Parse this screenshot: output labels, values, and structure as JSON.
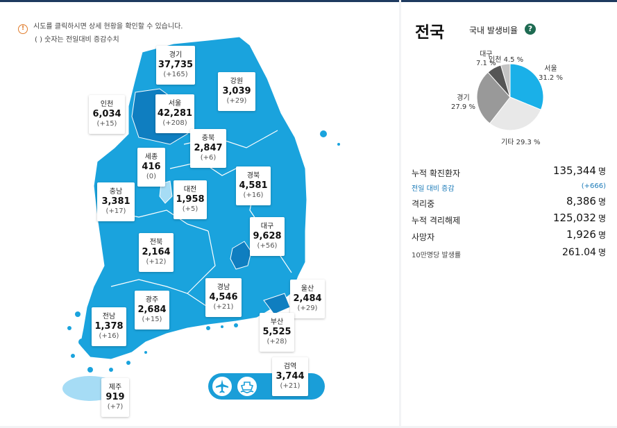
{
  "notice": {
    "line1": "시도를 클릭하시면 상세 현황을 확인할 수 있습니다.",
    "line2": "( ) 숫자는 전일대비 증감수치"
  },
  "regions": [
    {
      "name": "경기",
      "count": "37,735",
      "delta": "(+165)"
    },
    {
      "name": "강원",
      "count": "3,039",
      "delta": "(+29)"
    },
    {
      "name": "인천",
      "count": "6,034",
      "delta": "(+15)"
    },
    {
      "name": "서울",
      "count": "42,281",
      "delta": "(+208)"
    },
    {
      "name": "충북",
      "count": "2,847",
      "delta": "(+6)"
    },
    {
      "name": "세종",
      "count": "416",
      "delta": "(0)"
    },
    {
      "name": "경북",
      "count": "4,581",
      "delta": "(+16)"
    },
    {
      "name": "대전",
      "count": "1,958",
      "delta": "(+5)"
    },
    {
      "name": "충남",
      "count": "3,381",
      "delta": "(+17)"
    },
    {
      "name": "대구",
      "count": "9,628",
      "delta": "(+56)"
    },
    {
      "name": "전북",
      "count": "2,164",
      "delta": "(+12)"
    },
    {
      "name": "울산",
      "count": "2,484",
      "delta": "(+29)"
    },
    {
      "name": "경남",
      "count": "4,546",
      "delta": "(+21)"
    },
    {
      "name": "광주",
      "count": "2,684",
      "delta": "(+15)"
    },
    {
      "name": "전남",
      "count": "1,378",
      "delta": "(+16)"
    },
    {
      "name": "부산",
      "count": "5,525",
      "delta": "(+28)"
    },
    {
      "name": "검역",
      "count": "3,744",
      "delta": "(+21)"
    },
    {
      "name": "제주",
      "count": "919",
      "delta": "(+7)"
    }
  ],
  "transport": {
    "airport_icon": "airplane-icon",
    "port_icon": "ship-icon"
  },
  "summary": {
    "region_title": "전국",
    "pie_title": "국내 발생비율",
    "help": "?",
    "pie": [
      {
        "label": "서울",
        "pct": "31.2 %",
        "value": 31.2,
        "color": "#1ab0e8"
      },
      {
        "label": "기타",
        "pct": "29.3 %",
        "value": 29.3,
        "color": "#e8e8e8"
      },
      {
        "label": "경기",
        "pct": "27.9 %",
        "value": 27.9,
        "color": "#999999"
      },
      {
        "label": "대구",
        "pct": "7.1 %",
        "value": 7.1,
        "color": "#555555"
      },
      {
        "label": "인천",
        "pct": "4.5 %",
        "value": 4.5,
        "color": "#c4c4c4"
      }
    ],
    "stats": [
      {
        "label": "누적 확진환자",
        "value": "135,344",
        "unit": "명"
      },
      {
        "label": "전일 대비 증감",
        "value": "(+666)",
        "unit": ""
      },
      {
        "label": "격리중",
        "value": "8,386",
        "unit": "명"
      },
      {
        "label": "누적 격리해제",
        "value": "125,032",
        "unit": "명"
      },
      {
        "label": "사망자",
        "value": "1,926",
        "unit": "명"
      },
      {
        "label": "10만명당 발생률",
        "value": "261.04",
        "unit": "명"
      }
    ]
  },
  "colors": {
    "map_primary": "#1aa3dd",
    "map_dark": "#0f7ec0",
    "map_light": "#a6dcf5",
    "header": "#1e3a5f"
  }
}
